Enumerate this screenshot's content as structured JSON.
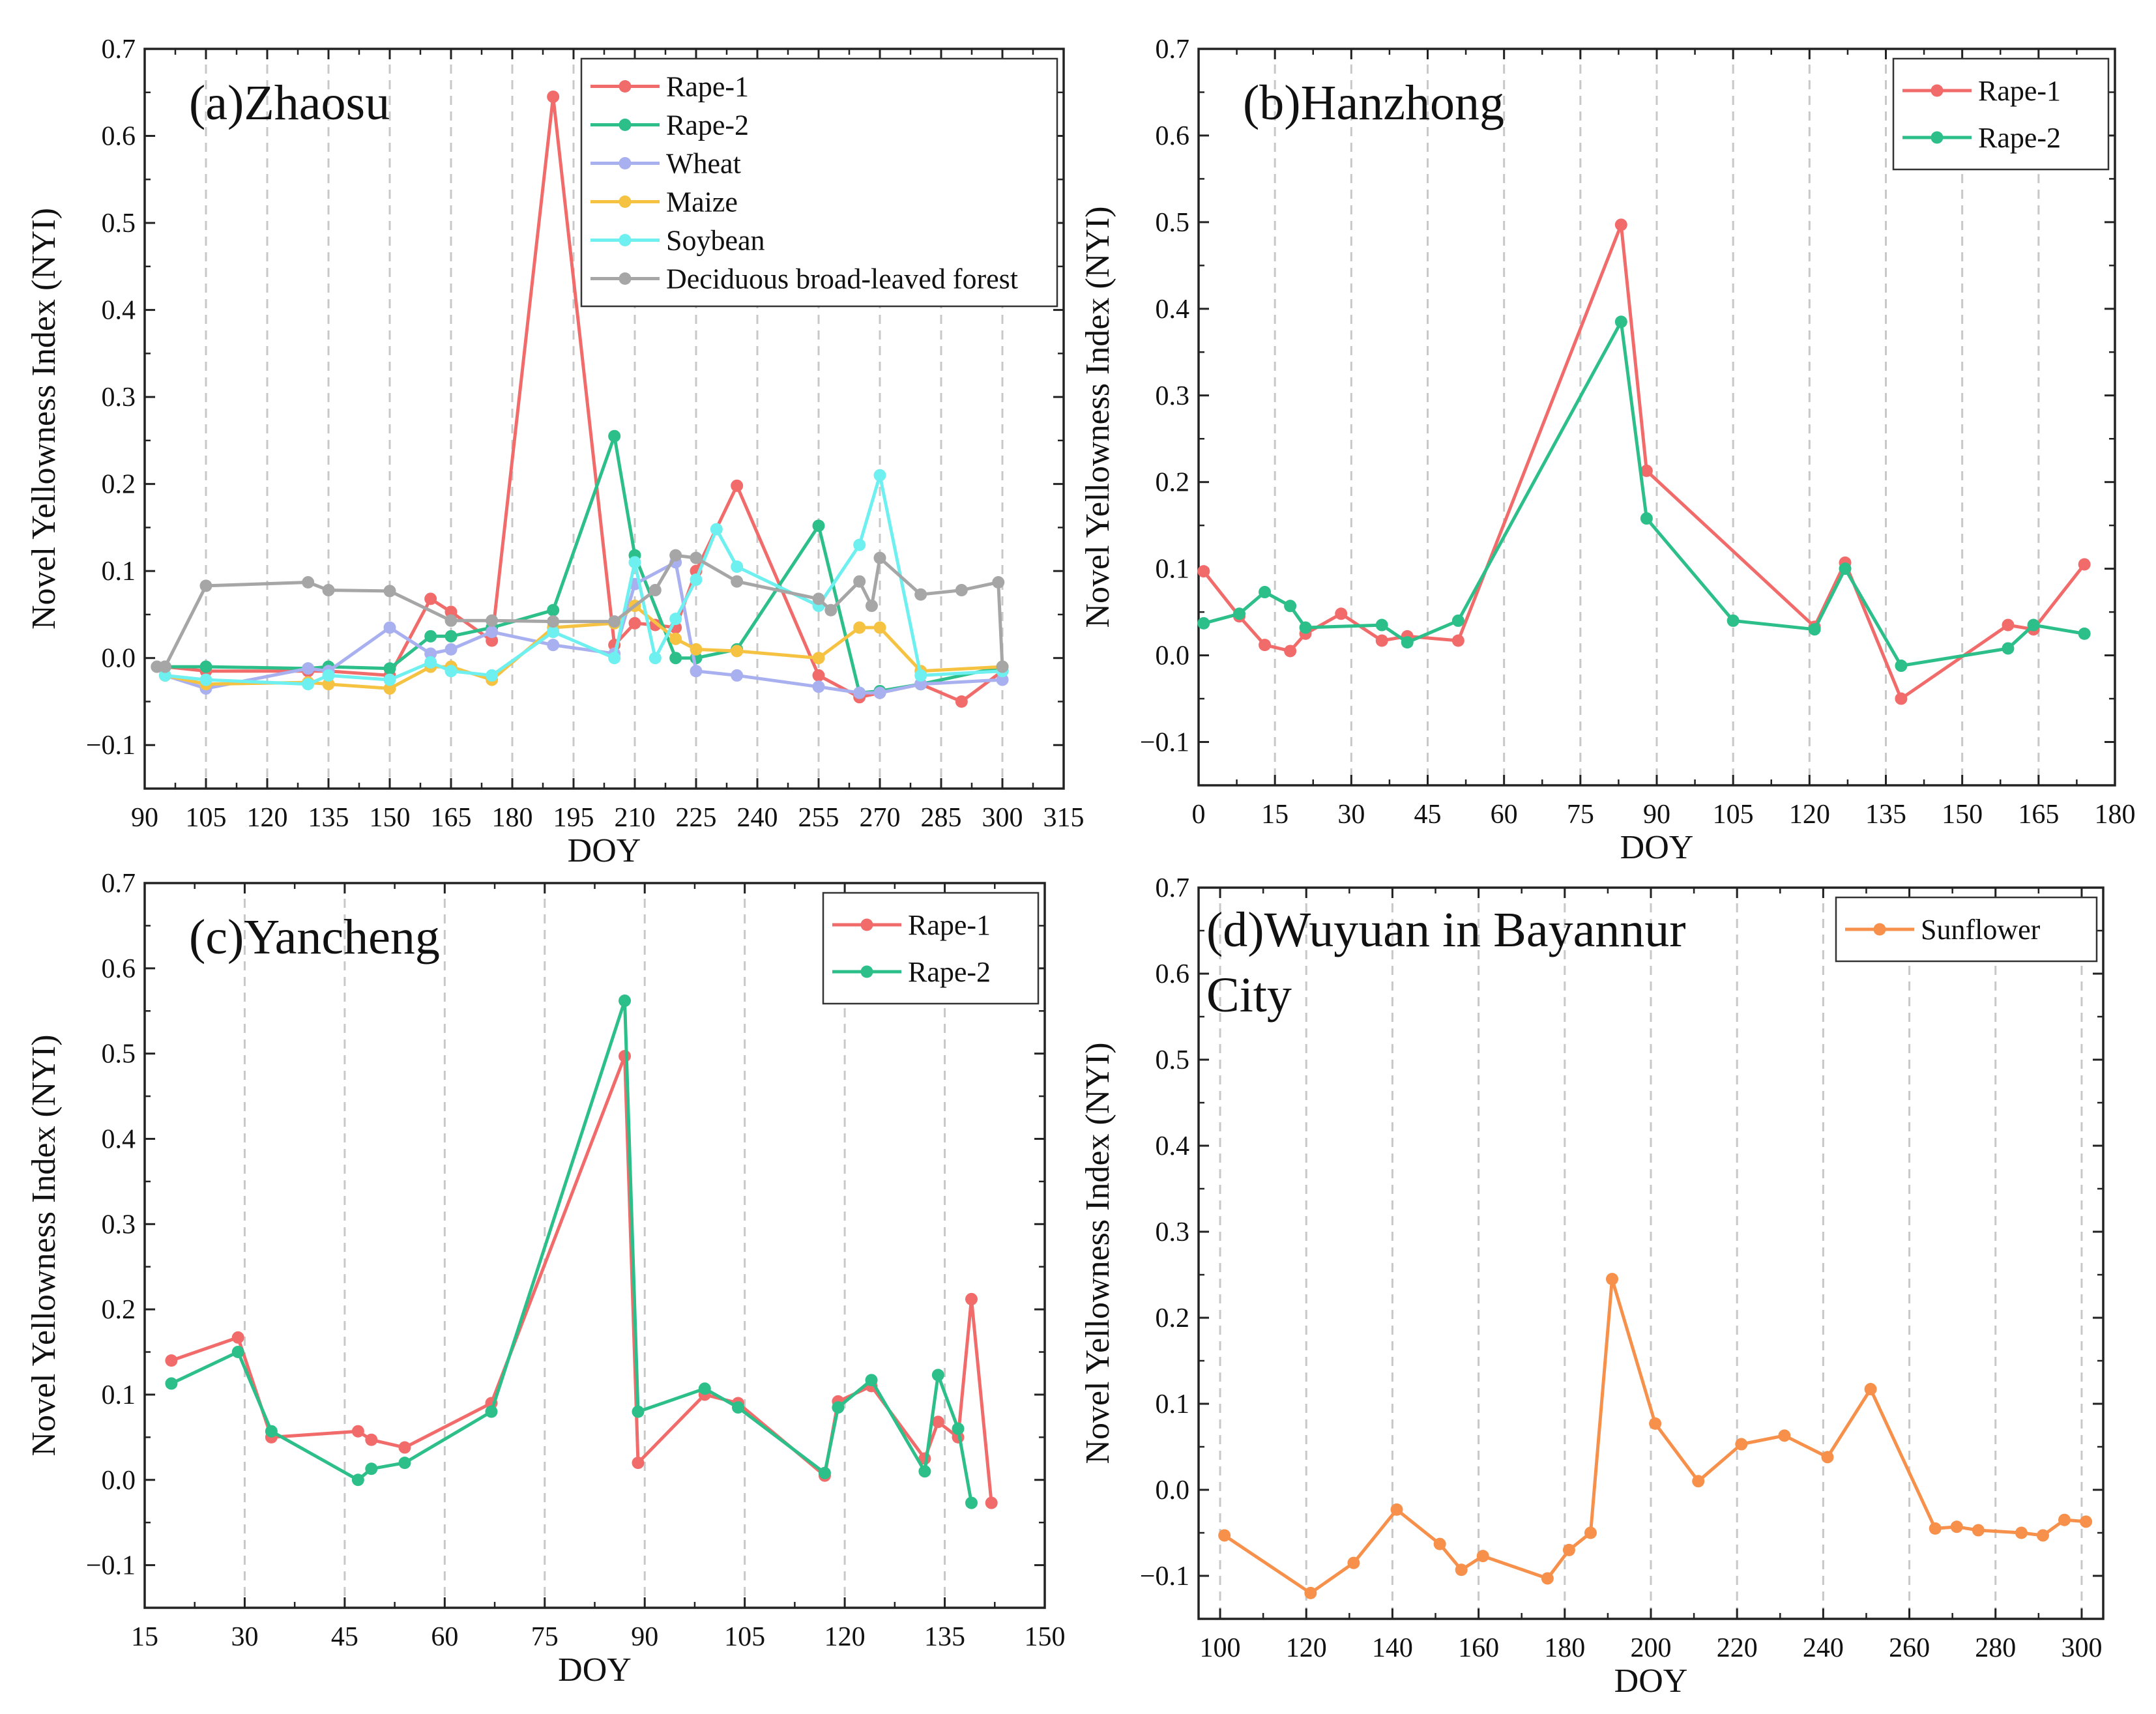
{
  "chart_data": [
    {
      "type": "line",
      "panel_label": "(a)Zhaosu",
      "xlabel": "DOY",
      "ylabel": "Novel Yellowness Index (NYI)",
      "xlim": [
        90,
        315
      ],
      "ylim": [
        -0.15,
        0.7
      ],
      "xticks": [
        90,
        105,
        120,
        135,
        150,
        165,
        180,
        195,
        210,
        225,
        240,
        255,
        270,
        285,
        300,
        315
      ],
      "yticks": [
        -0.1,
        0.0,
        0.1,
        0.2,
        0.3,
        0.4,
        0.5,
        0.6,
        0.7
      ],
      "ytick_labels": [
        "−0.1",
        "0.0",
        "0.1",
        "0.2",
        "0.3",
        "0.4",
        "0.5",
        "0.6",
        "0.7"
      ],
      "grid": "vertical dashed",
      "legend_position": "top-right",
      "series": [
        {
          "name": "Rape-1",
          "color": "#f26b6b",
          "x": [
            95,
            105,
            130,
            135,
            150,
            160,
            165,
            175,
            190,
            205,
            210,
            215,
            220,
            225,
            235,
            255,
            265,
            270,
            280,
            290,
            300
          ],
          "y": [
            -0.01,
            -0.015,
            -0.015,
            -0.015,
            -0.02,
            0.068,
            0.053,
            0.02,
            0.645,
            0.015,
            0.04,
            0.038,
            0.035,
            0.1,
            0.198,
            -0.02,
            -0.045,
            -0.04,
            -0.03,
            -0.05,
            -0.015
          ]
        },
        {
          "name": "Rape-2",
          "color": "#2dbf8a",
          "x": [
            95,
            105,
            130,
            135,
            150,
            160,
            165,
            175,
            190,
            205,
            210,
            220,
            225,
            235,
            255,
            265,
            270,
            280,
            300
          ],
          "y": [
            -0.01,
            -0.01,
            -0.012,
            -0.01,
            -0.012,
            0.025,
            0.025,
            0.035,
            0.055,
            0.255,
            0.118,
            0.0,
            0.0,
            0.01,
            0.152,
            -0.04,
            -0.038,
            -0.03,
            -0.01
          ]
        },
        {
          "name": "Wheat",
          "color": "#a8b0f0",
          "x": [
            95,
            105,
            130,
            135,
            150,
            160,
            165,
            175,
            190,
            205,
            210,
            220,
            225,
            235,
            255,
            265,
            270,
            280,
            300
          ],
          "y": [
            -0.02,
            -0.035,
            -0.012,
            -0.015,
            0.035,
            0.005,
            0.01,
            0.03,
            0.015,
            0.005,
            0.085,
            0.11,
            -0.015,
            -0.02,
            -0.033,
            -0.04,
            -0.04,
            -0.03,
            -0.025
          ]
        },
        {
          "name": "Maize",
          "color": "#f5c242",
          "x": [
            95,
            105,
            130,
            135,
            150,
            160,
            165,
            175,
            190,
            205,
            210,
            220,
            225,
            235,
            255,
            265,
            270,
            280,
            300
          ],
          "y": [
            -0.02,
            -0.03,
            -0.028,
            -0.03,
            -0.035,
            -0.01,
            -0.01,
            -0.025,
            0.035,
            0.04,
            0.06,
            0.022,
            0.01,
            0.008,
            0.0,
            0.035,
            0.035,
            -0.015,
            -0.01
          ]
        },
        {
          "name": "Soybean",
          "color": "#6ef0f0",
          "x": [
            95,
            105,
            130,
            135,
            150,
            160,
            165,
            175,
            190,
            205,
            210,
            215,
            220,
            225,
            230,
            235,
            255,
            265,
            270,
            280,
            300
          ],
          "y": [
            -0.02,
            -0.025,
            -0.03,
            -0.02,
            -0.025,
            -0.005,
            -0.015,
            -0.02,
            0.03,
            0.0,
            0.11,
            0.0,
            0.045,
            0.09,
            0.148,
            0.105,
            0.06,
            0.13,
            0.21,
            -0.02,
            -0.015
          ]
        },
        {
          "name": "Deciduous broad-leaved forest",
          "color": "#a6a6a6",
          "x": [
            93,
            95,
            105,
            130,
            135,
            150,
            165,
            175,
            190,
            205,
            215,
            220,
            225,
            235,
            255,
            258,
            265,
            268,
            270,
            280,
            290,
            299,
            300
          ],
          "y": [
            -0.01,
            -0.01,
            0.083,
            0.087,
            0.078,
            0.077,
            0.043,
            0.043,
            0.042,
            0.042,
            0.078,
            0.118,
            0.115,
            0.088,
            0.068,
            0.055,
            0.088,
            0.06,
            0.115,
            0.073,
            0.078,
            0.087,
            -0.01
          ]
        }
      ]
    },
    {
      "type": "line",
      "panel_label": "(b)Hanzhong",
      "xlabel": "DOY",
      "ylabel": "Novel Yellowness Index (NYI)",
      "xlim": [
        0,
        180
      ],
      "ylim": [
        -0.15,
        0.7
      ],
      "xticks": [
        0,
        15,
        30,
        45,
        60,
        75,
        90,
        105,
        120,
        135,
        150,
        165,
        180
      ],
      "yticks": [
        -0.1,
        0.0,
        0.1,
        0.2,
        0.3,
        0.4,
        0.5,
        0.6,
        0.7
      ],
      "ytick_labels": [
        "−0.1",
        "0.0",
        "0.1",
        "0.2",
        "0.3",
        "0.4",
        "0.5",
        "0.6",
        "0.7"
      ],
      "grid": "vertical dashed",
      "legend_position": "top-right",
      "series": [
        {
          "name": "Rape-1",
          "color": "#f26b6b",
          "x": [
            1,
            8,
            13,
            18,
            21,
            28,
            36,
            41,
            51,
            83,
            88,
            121,
            127,
            138,
            159,
            164,
            174
          ],
          "y": [
            0.097,
            0.045,
            0.012,
            0.005,
            0.025,
            0.048,
            0.017,
            0.022,
            0.017,
            0.497,
            0.213,
            0.033,
            0.107,
            -0.05,
            0.035,
            0.03,
            0.105
          ]
        },
        {
          "name": "Rape-2",
          "color": "#2dbf8a",
          "x": [
            1,
            8,
            13,
            18,
            21,
            36,
            41,
            51,
            83,
            88,
            105,
            121,
            127,
            138,
            159,
            164,
            174
          ],
          "y": [
            0.037,
            0.048,
            0.073,
            0.057,
            0.032,
            0.035,
            0.015,
            0.04,
            0.385,
            0.158,
            0.04,
            0.03,
            0.1,
            -0.012,
            0.008,
            0.035,
            0.025
          ]
        }
      ]
    },
    {
      "type": "line",
      "panel_label": "(c)Yancheng",
      "xlabel": "DOY",
      "ylabel": "Novel Yellowness Index (NYI)",
      "xlim": [
        15,
        150
      ],
      "ylim": [
        -0.15,
        0.7
      ],
      "xticks": [
        15,
        30,
        45,
        60,
        75,
        90,
        105,
        120,
        135,
        150
      ],
      "yticks": [
        -0.1,
        0.0,
        0.1,
        0.2,
        0.3,
        0.4,
        0.5,
        0.6,
        0.7
      ],
      "ytick_labels": [
        "−0.1",
        "0.0",
        "0.1",
        "0.2",
        "0.3",
        "0.4",
        "0.5",
        "0.6",
        "0.7"
      ],
      "grid": "vertical dashed",
      "legend_position": "top-right",
      "series": [
        {
          "name": "Rape-1",
          "color": "#f26b6b",
          "x": [
            19,
            29,
            34,
            47,
            49,
            54,
            67,
            87,
            89,
            99,
            104,
            117,
            119,
            124,
            132,
            134,
            137,
            139,
            142
          ],
          "y": [
            0.14,
            0.167,
            0.05,
            0.057,
            0.047,
            0.038,
            0.09,
            0.497,
            0.02,
            0.1,
            0.09,
            0.005,
            0.092,
            0.11,
            0.025,
            0.068,
            0.05,
            0.212,
            -0.027
          ]
        },
        {
          "name": "Rape-2",
          "color": "#2dbf8a",
          "x": [
            19,
            29,
            34,
            47,
            49,
            54,
            67,
            87,
            89,
            99,
            104,
            117,
            119,
            124,
            132,
            134,
            137,
            139
          ],
          "y": [
            0.113,
            0.15,
            0.057,
            0.0,
            0.013,
            0.02,
            0.08,
            0.562,
            0.08,
            0.107,
            0.085,
            0.008,
            0.085,
            0.117,
            0.01,
            0.123,
            0.06,
            -0.027
          ]
        }
      ]
    },
    {
      "type": "line",
      "panel_label_lines": [
        "(d)Wuyuan in Bayannur",
        "City"
      ],
      "xlabel": "DOY",
      "ylabel": "Novel Yellowness Index (NYI)",
      "xlim": [
        95,
        305
      ],
      "ylim": [
        -0.15,
        0.7
      ],
      "xticks": [
        100,
        120,
        140,
        160,
        180,
        200,
        220,
        240,
        260,
        280,
        300
      ],
      "yticks": [
        -0.1,
        0.0,
        0.1,
        0.2,
        0.3,
        0.4,
        0.5,
        0.6,
        0.7
      ],
      "ytick_labels": [
        "−0.1",
        "0.0",
        "0.1",
        "0.2",
        "0.3",
        "0.4",
        "0.5",
        "0.6",
        "0.7"
      ],
      "grid": "vertical dashed",
      "legend_position": "top-right",
      "series": [
        {
          "name": "Sunflower",
          "color": "#f6904a",
          "x": [
            101,
            121,
            131,
            141,
            151,
            156,
            161,
            176,
            181,
            186,
            191,
            201,
            211,
            221,
            231,
            241,
            251,
            266,
            271,
            276,
            286,
            291,
            296,
            301
          ],
          "y": [
            -0.053,
            -0.12,
            -0.085,
            -0.023,
            -0.063,
            -0.093,
            -0.077,
            -0.103,
            -0.07,
            -0.05,
            0.245,
            0.077,
            0.01,
            0.053,
            0.063,
            0.038,
            0.117,
            -0.045,
            -0.043,
            -0.047,
            -0.05,
            -0.053,
            -0.035,
            -0.037
          ]
        }
      ]
    }
  ]
}
